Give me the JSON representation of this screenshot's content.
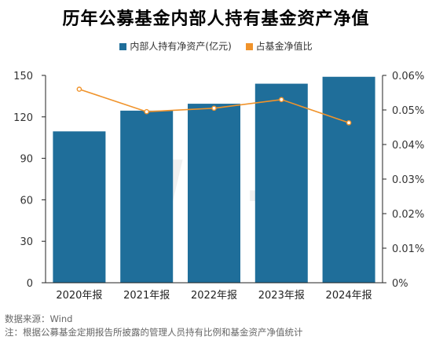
{
  "title": "历年公募基金内部人持有基金资产净值",
  "legend": {
    "bar_label": "内部人持有净资产(亿元)",
    "line_label": "占基金净值比"
  },
  "colors": {
    "bar": "#1f6e9a",
    "line": "#f0932b",
    "axis": "#222222",
    "grid": "#e6e6e6"
  },
  "chart_data": {
    "type": "bar",
    "categories": [
      "2020年报",
      "2021年报",
      "2022年报",
      "2023年报",
      "2024年报"
    ],
    "series": [
      {
        "name": "内部人持有净资产(亿元)",
        "type": "bar",
        "axis": "left",
        "values": [
          109.5,
          124.5,
          129.5,
          144,
          149
        ]
      },
      {
        "name": "占基金净值比",
        "type": "line",
        "axis": "right",
        "values": [
          0.056,
          0.0495,
          0.0505,
          0.053,
          0.0463
        ]
      }
    ],
    "y_left": {
      "ticks": [
        "0",
        "30",
        "60",
        "90",
        "120",
        "150"
      ],
      "lim": [
        0,
        150
      ]
    },
    "y_right": {
      "ticks": [
        "0%",
        "0.01%",
        "0.02%",
        "0.03%",
        "0.04%",
        "0.05%",
        "0.06%"
      ],
      "lim": [
        0,
        0.06
      ]
    },
    "watermark": "Win.d"
  },
  "footer": {
    "source": "数据来源：Wind",
    "note": "注：根据公募基金定期报告所披露的管理人员持有比例和基金资产净值统计"
  }
}
